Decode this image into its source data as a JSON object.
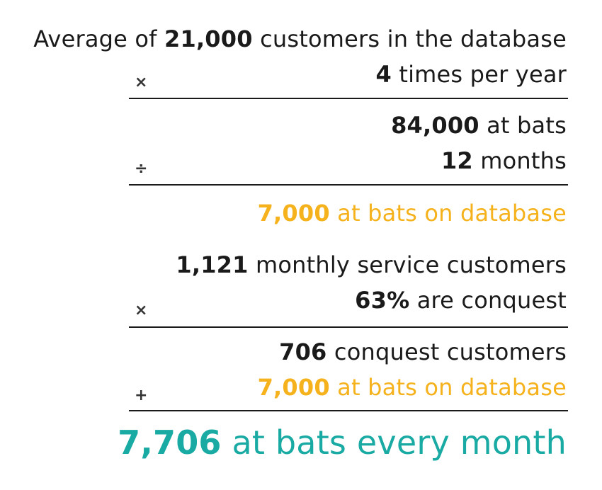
{
  "lines": {
    "l1": {
      "num": "21,000",
      "pre": "Average of ",
      "post": " customers in the database"
    },
    "l2": {
      "num": "4",
      "post": " times per year"
    },
    "l3": {
      "num": "84,000",
      "post": " at bats"
    },
    "l4": {
      "num": "12",
      "post": " months"
    },
    "l5": {
      "num": "7,000",
      "post": " at bats on database"
    },
    "l6": {
      "num": "1,121",
      "post": " monthly service customers"
    },
    "l7": {
      "num": "63%",
      "post": " are conquest"
    },
    "l8": {
      "num": "706",
      "post": " conquest customers"
    },
    "l9": {
      "num": "7,000",
      "post": " at bats on database"
    },
    "result": {
      "num": "7,706",
      "post": " at bats every month"
    }
  },
  "operators": {
    "multiply1": "×",
    "divide": "÷",
    "multiply2": "×",
    "plus": "+"
  },
  "colors": {
    "text": "#1a1a1a",
    "highlight": "#f5b21c",
    "result": "#18aaa3"
  }
}
